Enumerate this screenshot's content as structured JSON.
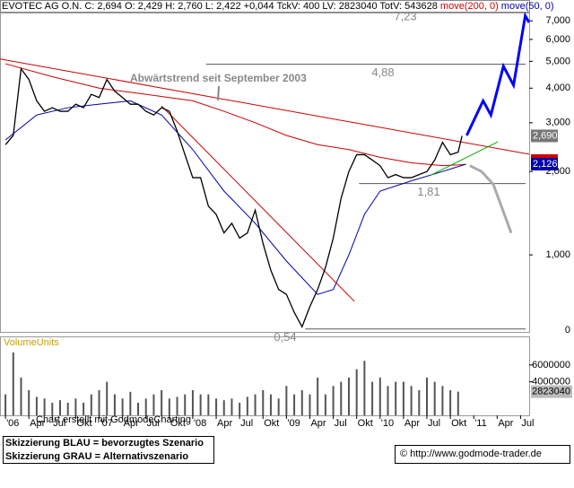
{
  "chart_data": {
    "type": "line",
    "title": "EVOTEC AG O.N.",
    "quote": "C: 2,694 O: 2,429 H: 2,760 L: 2,422 +0,044 TckV: 400 LV: 2823040 TotV: 543628",
    "annotation": "Abwärtstrend seit September 2003",
    "ylog": true,
    "xlim": [
      -0.7,
      67.1
    ],
    "ylim": [
      0.527,
      7.5
    ],
    "yticks": [
      {
        "value": 7,
        "label": "7,000"
      },
      {
        "value": 6,
        "label": "6,000"
      },
      {
        "value": 5,
        "label": "5,000"
      },
      {
        "value": 4,
        "label": "4,000"
      },
      {
        "value": 3,
        "label": "3,000"
      },
      {
        "value": 2,
        "label": "2,000"
      },
      {
        "value": 1,
        "label": "1,000"
      }
    ],
    "y_bottom_label": "0",
    "xticks": [
      {
        "value": 0,
        "label": "'06"
      },
      {
        "value": 3,
        "label": "Apr"
      },
      {
        "value": 6,
        "label": "Jul"
      },
      {
        "value": 9,
        "label": "Okt"
      },
      {
        "value": 12,
        "label": "'07"
      },
      {
        "value": 15,
        "label": "Apr"
      },
      {
        "value": 18,
        "label": "Jul"
      },
      {
        "value": 21,
        "label": "Okt"
      },
      {
        "value": 24,
        "label": "'08"
      },
      {
        "value": 27,
        "label": "Apr"
      },
      {
        "value": 30,
        "label": "Jul"
      },
      {
        "value": 33,
        "label": "Okt"
      },
      {
        "value": 36,
        "label": "'09"
      },
      {
        "value": 39,
        "label": "Apr"
      },
      {
        "value": 42,
        "label": "Jul"
      },
      {
        "value": 45,
        "label": "Okt"
      },
      {
        "value": 48,
        "label": "'10"
      },
      {
        "value": 51,
        "label": "Apr"
      },
      {
        "value": 54,
        "label": "Jul"
      },
      {
        "value": 57,
        "label": "Okt"
      },
      {
        "value": 60,
        "label": "'11"
      },
      {
        "value": 63,
        "label": "Apr"
      },
      {
        "value": 66,
        "label": "Jul"
      }
    ],
    "series": [
      {
        "color": "#000000",
        "x": [
          0,
          1,
          2,
          3,
          4,
          5,
          6,
          7,
          8,
          9,
          10,
          11,
          12,
          13,
          14,
          15,
          16,
          17,
          18,
          19,
          20,
          21,
          22,
          23,
          24,
          25,
          26,
          27,
          28,
          29,
          30,
          31,
          32,
          33,
          34,
          35,
          36,
          37,
          38,
          39,
          40,
          41,
          42,
          43,
          44,
          45,
          46,
          47,
          48,
          49,
          50,
          51,
          52,
          53,
          54,
          55,
          56,
          57,
          58,
          58.5
        ],
        "values": [
          2.5,
          2.7,
          4.7,
          4.3,
          3.6,
          3.3,
          3.4,
          3.3,
          3.3,
          3.5,
          3.4,
          3.8,
          3.7,
          4.3,
          3.9,
          3.7,
          3.5,
          3.5,
          3.3,
          3.2,
          3.4,
          3.3,
          2.8,
          2.3,
          1.9,
          1.9,
          1.5,
          1.4,
          1.2,
          1.3,
          1.15,
          1.2,
          1.45,
          1.1,
          0.88,
          0.75,
          0.72,
          0.62,
          0.55,
          0.65,
          0.75,
          0.9,
          1.15,
          1.6,
          2.0,
          2.3,
          2.3,
          2.2,
          2.1,
          1.9,
          1.95,
          1.9,
          1.9,
          1.95,
          2.0,
          2.2,
          2.55,
          2.3,
          2.35,
          2.69
        ]
      },
      {
        "name": "move(200, 0)",
        "color": "#cc0000",
        "x": [
          0,
          6,
          12,
          18,
          24,
          28,
          32,
          36,
          40,
          44,
          48,
          52,
          56,
          59
        ],
        "values": [
          4.9,
          4.4,
          4.0,
          3.8,
          3.6,
          3.3,
          3.0,
          2.7,
          2.5,
          2.4,
          2.25,
          2.15,
          2.1,
          2.12
        ]
      },
      {
        "name": "move(50, 0)",
        "color": "#0000aa",
        "x": [
          0,
          4,
          8,
          12,
          16,
          20,
          24,
          28,
          32,
          36,
          40,
          42,
          44,
          46,
          48,
          52,
          56,
          59
        ],
        "values": [
          2.6,
          3.2,
          3.4,
          3.5,
          3.6,
          3.2,
          2.4,
          1.7,
          1.3,
          0.95,
          0.72,
          0.75,
          1.0,
          1.4,
          1.7,
          1.85,
          2.0,
          2.126
        ]
      }
    ],
    "trendlines": [
      {
        "color": "#cc0000",
        "x": [
          -0.7,
          67.1
        ],
        "values": [
          5.1,
          2.31
        ]
      },
      {
        "color": "#cc0000",
        "x": [
          20,
          44.7
        ],
        "values": [
          3.45,
          0.68
        ]
      },
      {
        "color": "#00aa00",
        "x": [
          54.5,
          63.1
        ],
        "values": [
          1.94,
          2.56
        ]
      }
    ],
    "levels": [
      {
        "value": 7.23,
        "label": "7,23"
      },
      {
        "value": 4.88,
        "label": "4,88",
        "x": 25.7
      },
      {
        "value": 1.81,
        "label": "1,81",
        "x": 45.3
      },
      {
        "value": 0.54,
        "label": "0,54",
        "x": 38.4
      }
    ],
    "scenarios": [
      {
        "color": "#0000ff",
        "x": [
          59.1,
          61.2,
          62.2,
          63.8,
          65.1,
          66.6,
          67.1
        ],
        "values": [
          2.7,
          3.6,
          3.2,
          4.8,
          4.1,
          7.3,
          6.9
        ]
      },
      {
        "color": "#aaaaaa",
        "x": [
          59.5,
          61,
          62.5,
          64.8
        ],
        "values": [
          2.1,
          2.0,
          1.8,
          1.2
        ]
      }
    ],
    "last_price": {
      "value": 2.69,
      "label": "2,690"
    },
    "last_ma50": {
      "value": 2.126,
      "label": "2,126"
    },
    "volume": {
      "label": "VolumeUnits",
      "color": "#555555",
      "x": [
        0,
        1,
        2,
        3,
        4,
        5,
        6,
        7,
        8,
        9,
        10,
        11,
        12,
        13,
        14,
        15,
        16,
        17,
        18,
        19,
        20,
        21,
        22,
        23,
        24,
        25,
        26,
        27,
        28,
        29,
        30,
        31,
        32,
        33,
        34,
        35,
        36,
        37,
        38,
        39,
        40,
        41,
        42,
        43,
        44,
        45,
        46,
        47,
        48,
        49,
        50,
        51,
        52,
        53,
        54,
        55,
        56,
        57,
        58
      ],
      "values": [
        2500000,
        7500000,
        4500000,
        3000000,
        2200000,
        2000000,
        1500000,
        1800000,
        1500000,
        2000000,
        1500000,
        2500000,
        3000000,
        4000000,
        2500000,
        2000000,
        2800000,
        1500000,
        2000000,
        2500000,
        3000000,
        2000000,
        2200000,
        2500000,
        3000000,
        2500000,
        2500000,
        2000000,
        1800000,
        2000000,
        1500000,
        2200000,
        2500000,
        3000000,
        2500000,
        2000000,
        3500000,
        2500000,
        3000000,
        2500000,
        4500000,
        2500000,
        3500000,
        4000000,
        4500000,
        5500000,
        6500000,
        4000000,
        4500000,
        3500000,
        4000000,
        4000000,
        3500000,
        3000000,
        4500000,
        4000000,
        3500000,
        3000000,
        2823040
      ],
      "ylim": [
        0,
        9300000
      ],
      "yticks": [
        6000000,
        4000000
      ],
      "last": 2823040
    },
    "credit": "Chart erstellt mit GodmodeCharting",
    "notes": [
      "Skizzierung BLAU = bevorzugtes Szenario",
      "Skizzierung GRAU = Alternativszenario"
    ],
    "source": "© http://www.godmode-trader.de"
  }
}
